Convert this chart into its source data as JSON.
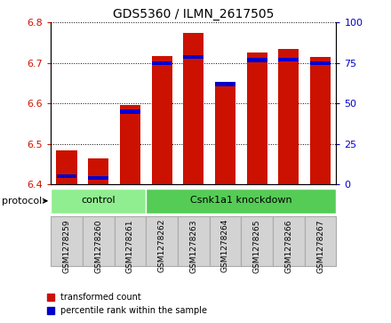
{
  "title": "GDS5360 / ILMN_2617505",
  "samples": [
    "GSM1278259",
    "GSM1278260",
    "GSM1278261",
    "GSM1278262",
    "GSM1278263",
    "GSM1278264",
    "GSM1278265",
    "GSM1278266",
    "GSM1278267"
  ],
  "red_values": [
    6.484,
    6.464,
    6.597,
    6.718,
    6.775,
    6.645,
    6.726,
    6.735,
    6.716
  ],
  "blue_values": [
    6.42,
    6.415,
    6.58,
    6.7,
    6.715,
    6.648,
    6.707,
    6.708,
    6.7
  ],
  "ylim_left": [
    6.4,
    6.8
  ],
  "ylim_right": [
    0,
    100
  ],
  "yticks_left": [
    6.4,
    6.5,
    6.6,
    6.7,
    6.8
  ],
  "yticks_right": [
    0,
    25,
    50,
    75,
    100
  ],
  "bar_bottom": 6.4,
  "bar_width": 0.65,
  "red_color": "#cc1100",
  "blue_color": "#0000cc",
  "protocols": [
    {
      "label": "control",
      "start": 0,
      "end": 2,
      "color": "#90ee90"
    },
    {
      "label": "Csnk1a1 knockdown",
      "start": 3,
      "end": 8,
      "color": "#55cc55"
    }
  ],
  "protocol_label": "protocol",
  "legend_items": [
    {
      "label": "transformed count",
      "color": "#cc1100"
    },
    {
      "label": "percentile rank within the sample",
      "color": "#0000cc"
    }
  ],
  "tick_bg_color": "#d3d3d3",
  "tick_edge_color": "#aaaaaa"
}
